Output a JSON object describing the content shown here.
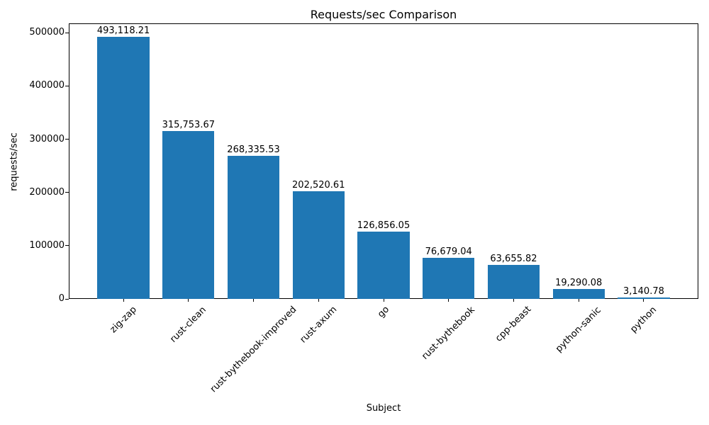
{
  "chart_data": {
    "type": "bar",
    "title": "Requests/sec Comparison",
    "xlabel": "Subject",
    "ylabel": "requests/sec",
    "categories": [
      "zig-zap",
      "rust-clean",
      "rust-bythebook-improved",
      "rust-axum",
      "go",
      "rust-bythebook",
      "cpp-beast",
      "python-sanic",
      "python"
    ],
    "values": [
      493118.21,
      315753.67,
      268335.53,
      202520.61,
      126856.05,
      76679.04,
      63655.82,
      19290.08,
      3140.78
    ],
    "bar_labels": [
      "493,118.21",
      "315,753.67",
      "268,335.53",
      "202,520.61",
      "126,856.05",
      "76,679.04",
      "63,655.82",
      "19,290.08",
      "3,140.78"
    ],
    "yticks": [
      0,
      100000,
      200000,
      300000,
      400000,
      500000
    ],
    "ytick_labels": [
      "0",
      "100000",
      "200000",
      "300000",
      "400000",
      "500000"
    ],
    "ylim": [
      0,
      517774
    ],
    "bar_color": "#1f77b4",
    "grid": false,
    "legend": "none"
  }
}
